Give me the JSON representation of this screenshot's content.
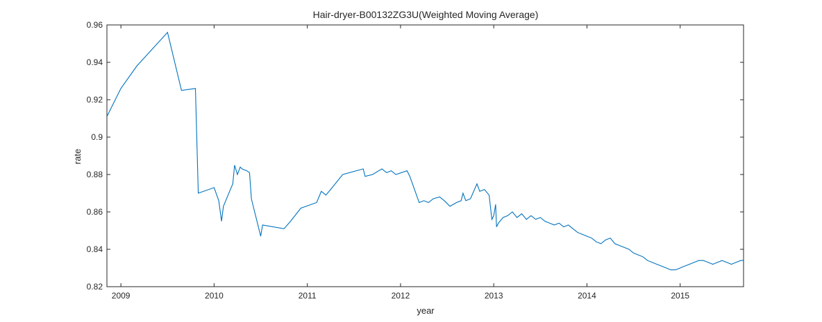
{
  "chart_data": {
    "type": "line",
    "title": "Hair-dryer-B00132ZG3U(Weighted Moving Average)",
    "xlabel": "year",
    "ylabel": "rate",
    "xlim": [
      2008.85,
      2015.68
    ],
    "ylim": [
      0.82,
      0.96
    ],
    "xticks": [
      2009,
      2010,
      2011,
      2012,
      2013,
      2014,
      2015
    ],
    "yticks": [
      0.82,
      0.84,
      0.86,
      0.88,
      0.9,
      0.92,
      0.94,
      0.96
    ],
    "ytick_labels": [
      "0.82",
      "0.84",
      "0.86",
      "0.88",
      "0.9",
      "0.92",
      "0.94",
      "0.96"
    ],
    "grid": false,
    "line_color": "#0072BD",
    "series": [
      {
        "name": "",
        "x": [
          2008.85,
          2009.0,
          2009.17,
          2009.5,
          2009.65,
          2009.8,
          2009.83,
          2010.0,
          2010.05,
          2010.08,
          2010.1,
          2010.15,
          2010.2,
          2010.22,
          2010.25,
          2010.28,
          2010.3,
          2010.35,
          2010.38,
          2010.4,
          2010.5,
          2010.52,
          2010.75,
          2010.82,
          2010.93,
          2011.1,
          2011.15,
          2011.2,
          2011.25,
          2011.38,
          2011.6,
          2011.62,
          2011.7,
          2011.8,
          2011.85,
          2011.9,
          2011.95,
          2012.07,
          2012.1,
          2012.2,
          2012.25,
          2012.3,
          2012.35,
          2012.42,
          2012.47,
          2012.53,
          2012.6,
          2012.65,
          2012.67,
          2012.7,
          2012.75,
          2012.82,
          2012.85,
          2012.9,
          2012.95,
          2012.98,
          2013.0,
          2013.02,
          2013.03,
          2013.05,
          2013.1,
          2013.15,
          2013.2,
          2013.25,
          2013.3,
          2013.35,
          2013.4,
          2013.45,
          2013.5,
          2013.55,
          2013.6,
          2013.65,
          2013.7,
          2013.75,
          2013.8,
          2013.85,
          2013.9,
          2013.95,
          2014.0,
          2014.05,
          2014.1,
          2014.15,
          2014.2,
          2014.25,
          2014.3,
          2014.35,
          2014.4,
          2014.45,
          2014.5,
          2014.55,
          2014.6,
          2014.65,
          2014.7,
          2014.75,
          2014.8,
          2014.85,
          2014.9,
          2014.95,
          2015.0,
          2015.05,
          2015.1,
          2015.15,
          2015.2,
          2015.25,
          2015.3,
          2015.35,
          2015.4,
          2015.45,
          2015.5,
          2015.55,
          2015.6,
          2015.65,
          2015.68
        ],
        "y": [
          0.911,
          0.926,
          0.938,
          0.956,
          0.925,
          0.926,
          0.87,
          0.873,
          0.866,
          0.855,
          0.863,
          0.869,
          0.875,
          0.885,
          0.88,
          0.884,
          0.883,
          0.882,
          0.881,
          0.867,
          0.847,
          0.853,
          0.851,
          0.855,
          0.862,
          0.865,
          0.871,
          0.869,
          0.872,
          0.88,
          0.883,
          0.879,
          0.88,
          0.883,
          0.881,
          0.882,
          0.88,
          0.882,
          0.879,
          0.865,
          0.866,
          0.865,
          0.867,
          0.868,
          0.866,
          0.863,
          0.865,
          0.866,
          0.87,
          0.866,
          0.867,
          0.875,
          0.871,
          0.872,
          0.869,
          0.856,
          0.858,
          0.864,
          0.852,
          0.854,
          0.857,
          0.858,
          0.86,
          0.857,
          0.859,
          0.856,
          0.858,
          0.856,
          0.857,
          0.855,
          0.854,
          0.853,
          0.854,
          0.852,
          0.853,
          0.851,
          0.849,
          0.848,
          0.847,
          0.846,
          0.844,
          0.843,
          0.845,
          0.846,
          0.843,
          0.842,
          0.841,
          0.84,
          0.838,
          0.837,
          0.836,
          0.834,
          0.833,
          0.832,
          0.831,
          0.83,
          0.829,
          0.829,
          0.83,
          0.831,
          0.832,
          0.833,
          0.834,
          0.834,
          0.833,
          0.832,
          0.833,
          0.834,
          0.833,
          0.832,
          0.833,
          0.834,
          0.834
        ]
      }
    ]
  }
}
